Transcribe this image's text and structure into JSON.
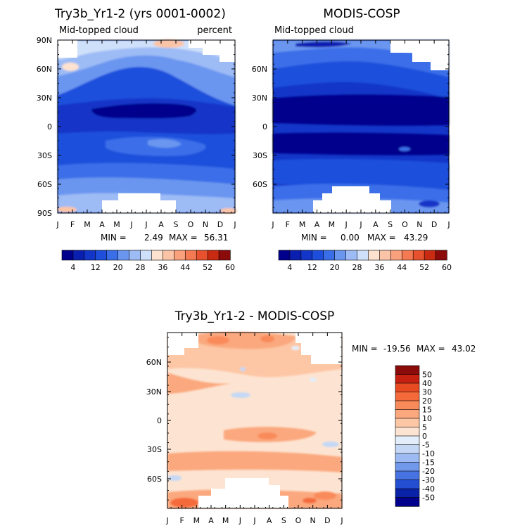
{
  "chart_data": [
    {
      "type": "heatmap",
      "title": "Try3b_Yr1-2 (yrs 0001-0002)",
      "left_label": "Mid-topped cloud",
      "right_label": "percent",
      "x_ticks": [
        "J",
        "F",
        "M",
        "A",
        "M",
        "J",
        "J",
        "A",
        "S",
        "O",
        "N",
        "D",
        "J"
      ],
      "y_ticks": [
        "90N",
        "60N",
        "30N",
        "0",
        "30S",
        "60S",
        "90S"
      ],
      "ylim": [
        -90,
        90
      ],
      "stats": {
        "min_label": "MIN =",
        "min": "2.49",
        "max_label": "MAX =",
        "max": "56.31"
      },
      "colorbar": {
        "labels": [
          "4",
          "12",
          "20",
          "28",
          "36",
          "44",
          "52",
          "60"
        ],
        "colors": [
          "#00008c",
          "#0a1fb0",
          "#1336c8",
          "#1d4fdc",
          "#3a6ee8",
          "#6a96f0",
          "#9dbbf5",
          "#cfe0fa",
          "#fde2d0",
          "#fcc4a6",
          "#f9a07c",
          "#f47a53",
          "#e8512d",
          "#c92a12",
          "#8b0a0a"
        ]
      }
    },
    {
      "type": "heatmap",
      "title": "MODIS-COSP",
      "left_label": "Mid-topped cloud",
      "x_ticks": [
        "J",
        "F",
        "M",
        "A",
        "M",
        "J",
        "J",
        "A",
        "S",
        "O",
        "N",
        "D",
        "J"
      ],
      "y_ticks": [
        "60N",
        "30N",
        "0",
        "30S",
        "60S"
      ],
      "ylim": [
        -90,
        90
      ],
      "stats": {
        "min_label": "MIN =",
        "min": "0.00",
        "max_label": "MAX =",
        "max": "43.29"
      },
      "colorbar": {
        "labels": [
          "4",
          "12",
          "20",
          "28",
          "36",
          "44",
          "52",
          "60"
        ],
        "colors": [
          "#00008c",
          "#0a1fb0",
          "#1336c8",
          "#1d4fdc",
          "#3a6ee8",
          "#6a96f0",
          "#9dbbf5",
          "#cfe0fa",
          "#fde2d0",
          "#fcc4a6",
          "#f9a07c",
          "#f47a53",
          "#e8512d",
          "#c92a12",
          "#8b0a0a"
        ]
      }
    },
    {
      "type": "heatmap",
      "title": "Try3b_Yr1-2 - MODIS-COSP",
      "x_ticks": [
        "J",
        "F",
        "M",
        "A",
        "M",
        "J",
        "J",
        "A",
        "S",
        "O",
        "N",
        "D",
        "J"
      ],
      "y_ticks": [
        "60N",
        "30N",
        "0",
        "30S",
        "60S"
      ],
      "ylim": [
        -90,
        90
      ],
      "stats": {
        "min_label": "MIN =",
        "min": "-19.56",
        "max_label": "MAX =",
        "max": "43.02"
      },
      "colorbar": {
        "labels": [
          "50",
          "40",
          "30",
          "20",
          "15",
          "10",
          "5",
          "0",
          "-5",
          "-10",
          "-15",
          "-20",
          "-30",
          "-40",
          "-50"
        ],
        "colors": [
          "#8b0a0a",
          "#c62010",
          "#e84a22",
          "#f46a3a",
          "#f98a5a",
          "#fba87e",
          "#fdc6a4",
          "#fde4d2",
          "#e2eefa",
          "#c4d8f6",
          "#9dbbf2",
          "#7099ec",
          "#4773e2",
          "#244fd2",
          "#0a22a8",
          "#00008c"
        ]
      }
    }
  ]
}
